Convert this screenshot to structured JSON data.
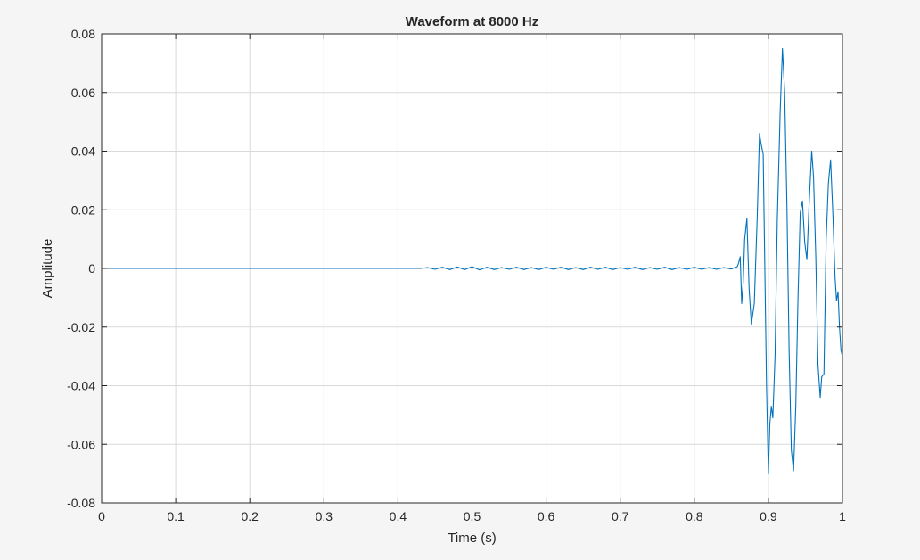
{
  "chart_data": {
    "type": "line",
    "title": "Waveform at 8000 Hz",
    "xlabel": "Time (s)",
    "ylabel": "Amplitude",
    "xlim": [
      0,
      1
    ],
    "ylim": [
      -0.08,
      0.08
    ],
    "xticks": [
      0,
      0.1,
      0.2,
      0.3,
      0.4,
      0.5,
      0.6,
      0.7,
      0.8,
      0.9,
      1
    ],
    "xtick_labels": [
      "0",
      "0.1",
      "0.2",
      "0.3",
      "0.4",
      "0.5",
      "0.6",
      "0.7",
      "0.8",
      "0.9",
      "1"
    ],
    "yticks": [
      -0.08,
      -0.06,
      -0.04,
      -0.02,
      0,
      0.02,
      0.04,
      0.06,
      0.08
    ],
    "ytick_labels": [
      "-0.08",
      "-0.06",
      "-0.04",
      "-0.02",
      "0",
      "0.02",
      "0.04",
      "0.06",
      "0.08"
    ],
    "grid": true,
    "legend": "none",
    "series": [
      {
        "color": "#0072bd",
        "x": [
          0,
          0.43,
          0.44,
          0.45,
          0.46,
          0.47,
          0.48,
          0.49,
          0.5,
          0.51,
          0.52,
          0.53,
          0.54,
          0.55,
          0.56,
          0.57,
          0.58,
          0.59,
          0.6,
          0.61,
          0.62,
          0.63,
          0.64,
          0.65,
          0.66,
          0.67,
          0.68,
          0.69,
          0.7,
          0.71,
          0.72,
          0.73,
          0.74,
          0.75,
          0.76,
          0.77,
          0.78,
          0.79,
          0.8,
          0.81,
          0.82,
          0.83,
          0.84,
          0.85,
          0.858,
          0.86,
          0.862,
          0.864,
          0.866,
          0.868,
          0.871,
          0.874,
          0.877,
          0.881,
          0.885,
          0.888,
          0.8905,
          0.893,
          0.895,
          0.8975,
          0.9,
          0.902,
          0.904,
          0.906,
          0.909,
          0.912,
          0.916,
          0.919,
          0.922,
          0.925,
          0.928,
          0.931,
          0.934,
          0.937,
          0.94,
          0.943,
          0.946,
          0.949,
          0.952,
          0.955,
          0.9585,
          0.961,
          0.964,
          0.967,
          0.97,
          0.972,
          0.975,
          0.978,
          0.981,
          0.984,
          0.987,
          0.99,
          0.992,
          0.994,
          0.996,
          0.998,
          1.0
        ],
        "y": [
          0,
          0,
          0.0003,
          -0.0003,
          0.0004,
          -0.0004,
          0.0005,
          -0.0004,
          0.0006,
          -0.0005,
          0.0004,
          -0.0004,
          0.0003,
          -0.0003,
          0.0004,
          -0.0004,
          0.0003,
          -0.0004,
          0.0004,
          -0.0003,
          0.0004,
          -0.0004,
          0.0003,
          -0.0004,
          0.0004,
          -0.0003,
          0.0004,
          -0.0004,
          0.0003,
          -0.0003,
          0.0004,
          -0.0004,
          0.0003,
          -0.0003,
          0.0004,
          -0.0004,
          0.0003,
          -0.0003,
          0.0004,
          -0.0003,
          0.0003,
          -0.0003,
          0.0003,
          -0.0002,
          0.0006,
          0.002,
          0.004,
          -0.012,
          -0.005,
          0.01,
          0.017,
          -0.007,
          -0.019,
          -0.012,
          0.018,
          0.046,
          0.042,
          0.039,
          0.004,
          -0.04,
          -0.07,
          -0.053,
          -0.047,
          -0.051,
          -0.03,
          0.016,
          0.054,
          0.075,
          0.06,
          0.022,
          -0.028,
          -0.062,
          -0.069,
          -0.047,
          -0.01,
          0.019,
          0.023,
          0.009,
          0.003,
          0.022,
          0.04,
          0.031,
          0.004,
          -0.033,
          -0.044,
          -0.037,
          -0.036,
          0.01,
          0.029,
          0.037,
          0.019,
          -0.003,
          -0.011,
          -0.008,
          -0.02,
          -0.028,
          -0.03
        ]
      }
    ]
  }
}
